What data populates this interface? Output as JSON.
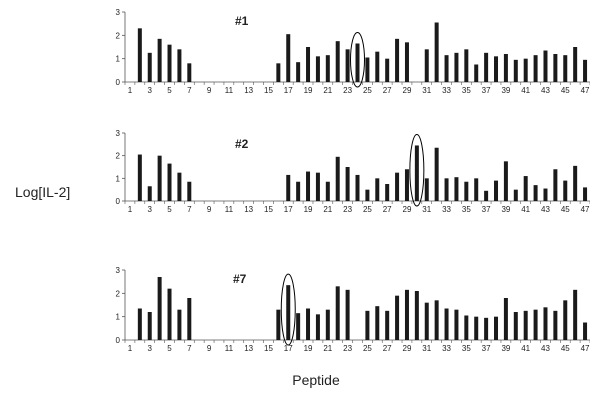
{
  "figure": {
    "ylabel": "Log[IL-2]",
    "xlabel": "Peptide"
  },
  "colors": {
    "bar": "#1a1a1a",
    "axis": "#555555",
    "highlight": "#000000"
  },
  "chart_data": [
    {
      "type": "bar",
      "title": "#1",
      "xlabel": "Peptide",
      "ylabel": "Log[IL-2]",
      "ylim": [
        0,
        3
      ],
      "yticks": [
        0,
        1,
        2,
        3
      ],
      "xtick_labels": [
        "1",
        "3",
        "5",
        "7",
        "9",
        "11",
        "13",
        "15",
        "17",
        "19",
        "21",
        "23",
        "25",
        "27",
        "29",
        "31",
        "33",
        "35",
        "37",
        "39",
        "41",
        "43",
        "45",
        "47"
      ],
      "categories": [
        1,
        2,
        3,
        4,
        5,
        6,
        7,
        8,
        9,
        10,
        11,
        12,
        13,
        14,
        15,
        16,
        17,
        18,
        19,
        20,
        21,
        22,
        23,
        24,
        25,
        26,
        27,
        28,
        29,
        30,
        31,
        32,
        33,
        34,
        35,
        36,
        37,
        38,
        39,
        40,
        41,
        42,
        43,
        44,
        45,
        46,
        47
      ],
      "values": [
        0,
        2.3,
        1.25,
        1.85,
        1.6,
        1.4,
        0.8,
        0,
        0,
        0,
        0,
        0,
        0,
        0,
        0,
        0.8,
        2.05,
        0.85,
        1.5,
        1.1,
        1.15,
        1.75,
        1.4,
        1.65,
        1.05,
        1.3,
        1.0,
        1.85,
        1.7,
        0,
        1.4,
        2.55,
        1.15,
        1.25,
        1.4,
        0.75,
        1.25,
        1.1,
        1.2,
        0.95,
        1.0,
        1.15,
        1.35,
        1.2,
        1.15,
        1.5,
        0.95
      ],
      "highlight": 24,
      "grid": false,
      "legend": "none"
    },
    {
      "type": "bar",
      "title": "#2",
      "xlabel": "Peptide",
      "ylabel": "Log[IL-2]",
      "ylim": [
        0,
        3
      ],
      "yticks": [
        0,
        1,
        2,
        3
      ],
      "xtick_labels": [
        "1",
        "3",
        "5",
        "7",
        "9",
        "11",
        "13",
        "15",
        "17",
        "19",
        "21",
        "23",
        "25",
        "27",
        "29",
        "31",
        "33",
        "35",
        "37",
        "39",
        "41",
        "43",
        "45",
        "47"
      ],
      "categories": [
        1,
        2,
        3,
        4,
        5,
        6,
        7,
        8,
        9,
        10,
        11,
        12,
        13,
        14,
        15,
        16,
        17,
        18,
        19,
        20,
        21,
        22,
        23,
        24,
        25,
        26,
        27,
        28,
        29,
        30,
        31,
        32,
        33,
        34,
        35,
        36,
        37,
        38,
        39,
        40,
        41,
        42,
        43,
        44,
        45,
        46,
        47
      ],
      "values": [
        0,
        2.05,
        0.65,
        2.0,
        1.65,
        1.25,
        0.85,
        0,
        0,
        0,
        0,
        0,
        0,
        0,
        0,
        0,
        1.15,
        0.85,
        1.3,
        1.25,
        0.85,
        1.95,
        1.5,
        1.15,
        0.5,
        1.0,
        0.75,
        1.25,
        1.4,
        2.45,
        1.0,
        2.35,
        1.0,
        1.05,
        0.85,
        1.0,
        0.45,
        0.9,
        1.75,
        0.5,
        1.1,
        0.7,
        0.55,
        1.4,
        0.9,
        1.55,
        0.6
      ],
      "highlight": 30,
      "grid": false,
      "legend": "none"
    },
    {
      "type": "bar",
      "title": "#7",
      "xlabel": "Peptide",
      "ylabel": "Log[IL-2]",
      "ylim": [
        0,
        3
      ],
      "yticks": [
        0,
        1,
        2,
        3
      ],
      "xtick_labels": [
        "1",
        "3",
        "5",
        "7",
        "9",
        "11",
        "13",
        "15",
        "17",
        "19",
        "21",
        "23",
        "25",
        "27",
        "29",
        "31",
        "33",
        "35",
        "37",
        "39",
        "41",
        "43",
        "45",
        "47"
      ],
      "categories": [
        1,
        2,
        3,
        4,
        5,
        6,
        7,
        8,
        9,
        10,
        11,
        12,
        13,
        14,
        15,
        16,
        17,
        18,
        19,
        20,
        21,
        22,
        23,
        24,
        25,
        26,
        27,
        28,
        29,
        30,
        31,
        32,
        33,
        34,
        35,
        36,
        37,
        38,
        39,
        40,
        41,
        42,
        43,
        44,
        45,
        46,
        47
      ],
      "values": [
        0,
        1.35,
        1.2,
        2.7,
        2.2,
        1.3,
        1.8,
        0,
        0,
        0,
        0,
        0,
        0,
        0,
        0,
        1.3,
        2.35,
        1.15,
        1.35,
        1.1,
        1.3,
        2.3,
        2.15,
        0,
        1.25,
        1.45,
        1.25,
        1.9,
        2.15,
        2.1,
        1.6,
        1.7,
        1.35,
        1.3,
        1.05,
        1.0,
        0.95,
        1.0,
        1.8,
        1.2,
        1.25,
        1.3,
        1.4,
        1.25,
        1.7,
        2.15,
        0.75
      ],
      "highlight": 17,
      "grid": false,
      "legend": "none"
    }
  ]
}
